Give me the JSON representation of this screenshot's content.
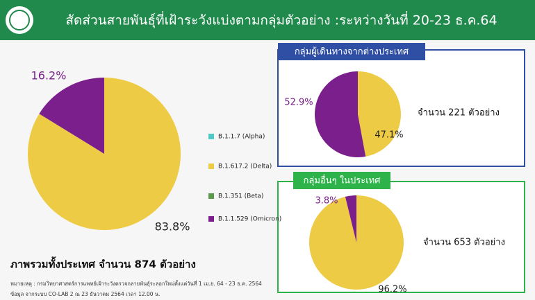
{
  "header": {
    "title": "สัดส่วนสายพันธุ์ที่เฝ้าระวังแบ่งตามกลุ่มตัวอย่าง :ระหว่างวันที่ 20-23 ธ.ค.64"
  },
  "chart_data": [
    {
      "type": "pie",
      "title": "ภาพรวมทั้งประเทศ จำนวน 874 ตัวอย่าง",
      "categories": [
        "B.1.1.7 (Alpha)",
        "B.1.617.2 (Delta)",
        "B.1.351 (Beta)",
        "B.1.1.529 (Omicron)"
      ],
      "values": [
        0,
        83.8,
        0,
        16.2
      ],
      "value_labels": [
        null,
        "83.8%",
        null,
        "16.2%"
      ],
      "colors": [
        "#4fc9c4",
        "#eecb45",
        "#5a9a4a",
        "#7b1f8c"
      ]
    },
    {
      "type": "pie",
      "title": "กลุ่มผู้เดินทางจากต่างประเทศ",
      "annotation": "จำนวน 221 ตัวอย่าง",
      "values": [
        47.1,
        52.9
      ],
      "value_labels": [
        "47.1%",
        "52.9%"
      ],
      "colors": [
        "#eecb45",
        "#7b1f8c"
      ]
    },
    {
      "type": "pie",
      "title": "กลุ่มอื่นๆ ในประเทศ",
      "annotation": "จำนวน 653 ตัวอย่าง",
      "values": [
        96.2,
        3.8
      ],
      "value_labels": [
        "96.2%",
        "3.8%"
      ],
      "colors": [
        "#eecb45",
        "#7b1f8c"
      ]
    }
  ],
  "notes": [
    "หมายเหตุ : กรมวิทยาศาสตร์การแพทย์เฝ้าระวังตรวจกลายพันธุ์ระลอกใหม่ตั้งแต่วันที่ 1 เม.ย. 64 - 23 ธ.ค. 2564",
    "ข้อมูล จากระบบ CO-LAB 2 ณ 23 ธันวาคม 2564 เวลา 12.00 น."
  ]
}
